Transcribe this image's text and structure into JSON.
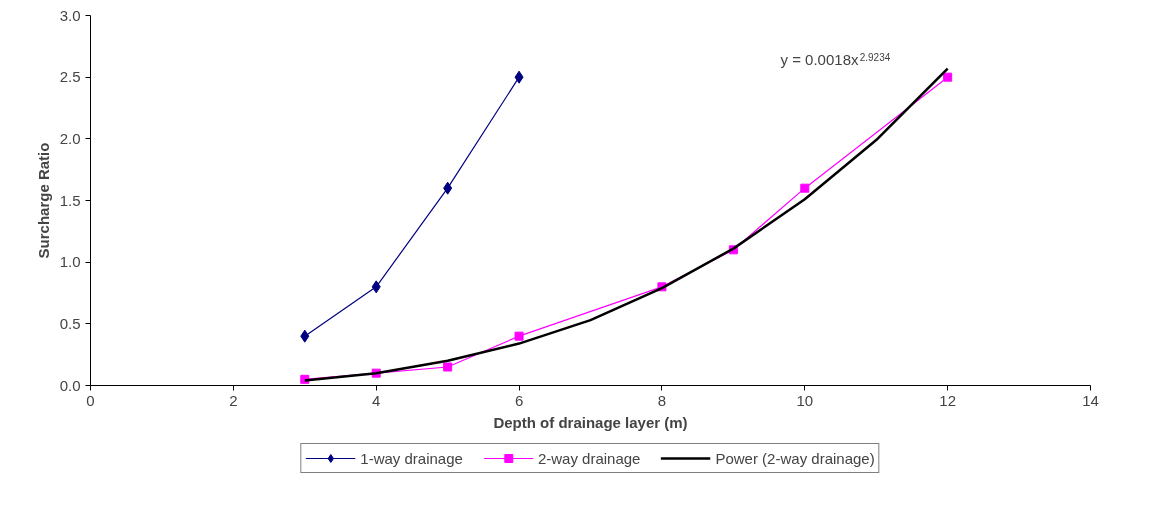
{
  "chart_data": {
    "type": "line",
    "xlabel": "Depth of drainage layer (m)",
    "ylabel": "Surcharge Ratio",
    "xlim": [
      0,
      14
    ],
    "xticks": [
      0,
      2,
      4,
      6,
      8,
      10,
      12,
      14
    ],
    "ylim": [
      0,
      3
    ],
    "yticks": [
      {
        "value": 0,
        "label": "0.0"
      },
      0.5,
      {
        "value": 1,
        "label": "1.0"
      },
      1.5,
      {
        "value": 2,
        "label": "2.0"
      },
      2.5,
      {
        "value": 3,
        "label": "3.0"
      }
    ],
    "grid": false,
    "legend": "bottom",
    "series": [
      {
        "name": "1-way drainage",
        "color": "#000080",
        "marker": "diamond",
        "x": [
          3,
          4,
          5,
          6
        ],
        "values": [
          0.4,
          0.8,
          1.6,
          2.5
        ]
      },
      {
        "name": "2-way drainage",
        "color": "#ff00ff",
        "marker": "square",
        "x": [
          3,
          4,
          5,
          6,
          8,
          9,
          10,
          12
        ],
        "values": [
          0.05,
          0.1,
          0.15,
          0.4,
          0.8,
          1.1,
          1.6,
          2.5
        ]
      },
      {
        "name": "Power (2-way drainage)",
        "color": "#000000",
        "marker": "none",
        "x": [
          3,
          4,
          5,
          6,
          7,
          8,
          9,
          10,
          11,
          12
        ],
        "values": [
          0.04,
          0.1,
          0.2,
          0.34,
          0.53,
          0.79,
          1.11,
          1.51,
          1.99,
          2.57
        ]
      }
    ],
    "annotations": [
      "y = 0.0018x$^{2.9234}$"
    ]
  }
}
